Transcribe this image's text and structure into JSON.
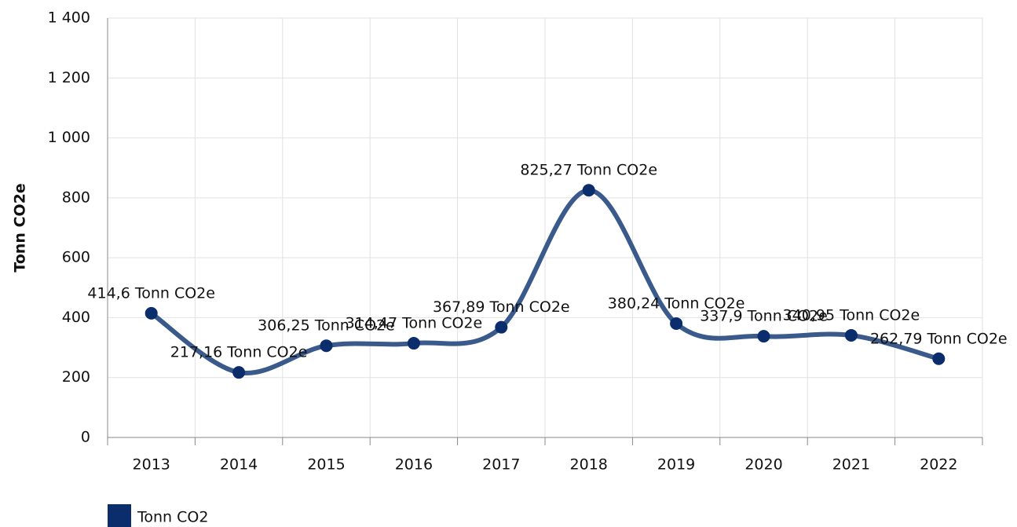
{
  "chart_data": {
    "type": "line",
    "y_label": "Tonn CO2e",
    "categories": [
      "2013",
      "2014",
      "2015",
      "2016",
      "2017",
      "2018",
      "2019",
      "2020",
      "2021",
      "2022"
    ],
    "series": [
      {
        "name": "Tonn CO2",
        "color": "#0b2d6b",
        "line_color": "#3a5a8c",
        "values": [
          414.6,
          217.16,
          306.25,
          314.47,
          367.89,
          825.27,
          380.24,
          337.9,
          340.95,
          262.79
        ],
        "value_labels": [
          "414,6 Tonn CO2e",
          "217,16 Tonn CO2e",
          "306,25 Tonn CO2e",
          "314,47 Tonn CO2e",
          "367,89 Tonn CO2e",
          "825,27 Tonn CO2e",
          "380,24 Tonn CO2e",
          "337,9 Tonn CO2e",
          "340,95 Tonn CO2e",
          "262,79 Tonn CO2e"
        ]
      }
    ],
    "ylim": [
      0,
      1400
    ],
    "yticks": [
      0,
      200,
      400,
      600,
      800,
      {
        "value": 1000,
        "label": "1 000"
      },
      {
        "value": 1200,
        "label": "1 200"
      },
      {
        "value": 1400,
        "label": "1 400"
      }
    ],
    "grid": true
  }
}
